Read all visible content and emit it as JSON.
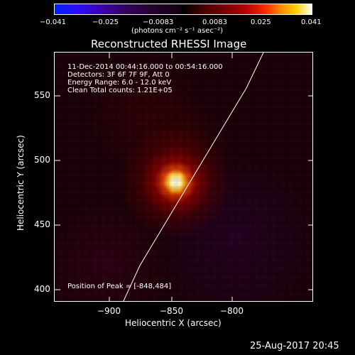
{
  "colorbar": {
    "labels": [
      "−0.041",
      "−0.025",
      "−0.0083",
      "0.0083",
      "0.025",
      "0.041"
    ],
    "unit": "(photons cm⁻² s⁻¹ asec⁻²)"
  },
  "title": "Reconstructed RHESSI Image",
  "info": {
    "line1": "11-Dec-2014 00:44:16.000 to 00:54:16.000",
    "line2": "Detectors: 3F 6F 7F 9F, Att 0",
    "line3": "Energy Range: 6.0 - 12.0 keV",
    "line4": "Clean    Total counts: 1.21E+05"
  },
  "peak": "Position of Peak = [-848,484]",
  "axes": {
    "x_label": "Heliocentric X (arcsec)",
    "y_label": "Heliocentric Y (arcsec)",
    "x_ticks": [
      "−900",
      "−850",
      "−800"
    ],
    "y_ticks": [
      "550",
      "500",
      "450",
      "400"
    ]
  },
  "footer": "25-Aug-2017 20:45"
}
